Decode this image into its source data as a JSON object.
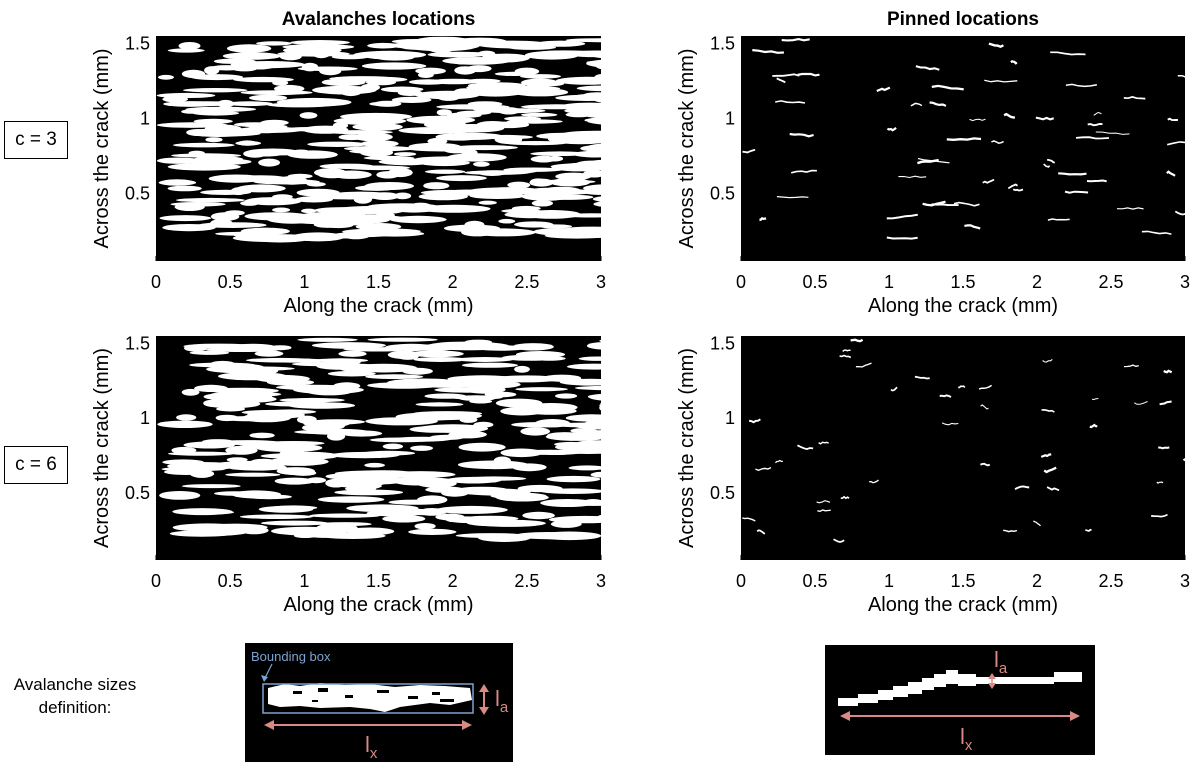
{
  "figure": {
    "row_labels": [
      "c = 3",
      "c = 6"
    ],
    "definition_label_line1": "Avalanche sizes",
    "definition_label_line2": "definition:",
    "bounding_box_label": "Bounding box",
    "la_label": "l",
    "la_sub": "a",
    "lx_label": "l",
    "lx_sub": "x"
  },
  "colors": {
    "background": "#000000",
    "feature": "#ffffff",
    "annotation": "#d98a85",
    "bbox": "#7da3cf"
  },
  "chart_data": [
    {
      "type": "heatmap",
      "title": "Avalanches locations",
      "xlabel": "Along the crack (mm)",
      "ylabel": "Across the crack (mm)",
      "xlim": [
        0,
        3
      ],
      "ylim": [
        0.05,
        1.55
      ],
      "xticks": [
        "0",
        "0.5",
        "1",
        "1.5",
        "2",
        "2.5",
        "3"
      ],
      "yticks": [
        "0.5",
        "1",
        "1.5"
      ],
      "description": "c = 3"
    },
    {
      "type": "heatmap",
      "title": "Pinned locations",
      "xlabel": "Along the crack (mm)",
      "ylabel": "Across the crack (mm)",
      "xlim": [
        0,
        3
      ],
      "ylim": [
        0.05,
        1.55
      ],
      "xticks": [
        "0",
        "0.5",
        "1",
        "1.5",
        "2",
        "2.5",
        "3"
      ],
      "yticks": [
        "0.5",
        "1",
        "1.5"
      ],
      "description": "c = 3"
    },
    {
      "type": "heatmap",
      "title": "",
      "xlabel": "Along the crack (mm)",
      "ylabel": "Across the crack (mm)",
      "xlim": [
        0,
        3
      ],
      "ylim": [
        0.05,
        1.55
      ],
      "xticks": [
        "0",
        "0.5",
        "1",
        "1.5",
        "2",
        "2.5",
        "3"
      ],
      "yticks": [
        "0.5",
        "1",
        "1.5"
      ],
      "description": "c = 6"
    },
    {
      "type": "heatmap",
      "title": "",
      "xlabel": "Along the crack (mm)",
      "ylabel": "Across the crack (mm)",
      "xlim": [
        0,
        3
      ],
      "ylim": [
        0.05,
        1.55
      ],
      "xticks": [
        "0",
        "0.5",
        "1",
        "1.5",
        "2",
        "2.5",
        "3"
      ],
      "yticks": [
        "0.5",
        "1",
        "1.5"
      ],
      "description": "c = 6"
    }
  ]
}
